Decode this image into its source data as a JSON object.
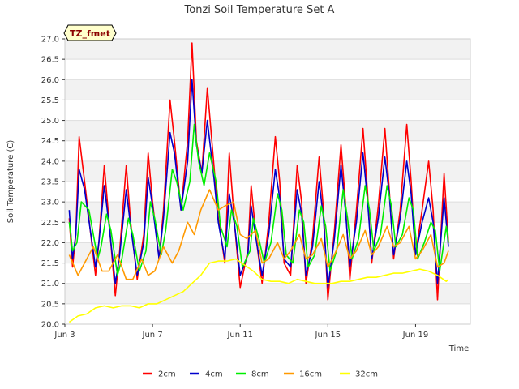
{
  "chart_data": {
    "type": "line",
    "title": "Tonzi Soil Temperature Set A",
    "xlabel": "Time",
    "ylabel": "Soil Temperature (C)",
    "tag": "TZ_fmet",
    "ylim": [
      20.0,
      27.0
    ],
    "xlim": [
      3.0,
      21.5
    ],
    "yticks": [
      20.0,
      20.5,
      21.0,
      21.5,
      22.0,
      22.5,
      23.0,
      23.5,
      24.0,
      24.5,
      25.0,
      25.5,
      26.0,
      26.5,
      27.0
    ],
    "ytick_labels": [
      "20.0",
      "20.5",
      "21.0",
      "21.5",
      "22.0",
      "22.5",
      "23.0",
      "23.5",
      "24.0",
      "24.5",
      "25.0",
      "25.5",
      "26.0",
      "26.5",
      "27.0"
    ],
    "xticks": [
      3,
      7,
      11,
      15,
      19
    ],
    "xtick_labels": [
      "Jun 3",
      "Jun 7",
      "Jun 11",
      "Jun 15",
      "Jun 19"
    ],
    "grid": true,
    "legend_position": "bottom",
    "series": [
      {
        "name": "2cm",
        "color": "#ff0000",
        "x": [
          3.2,
          3.35,
          3.5,
          3.65,
          3.9,
          4.4,
          4.55,
          4.8,
          5.0,
          5.3,
          5.5,
          5.8,
          6.0,
          6.3,
          6.6,
          6.8,
          7.0,
          7.3,
          7.5,
          7.8,
          8.0,
          8.3,
          8.6,
          8.8,
          9.0,
          9.25,
          9.5,
          9.8,
          10.0,
          10.3,
          10.5,
          10.75,
          11.0,
          11.35,
          11.5,
          11.75,
          12.0,
          12.3,
          12.6,
          12.8,
          13.0,
          13.3,
          13.6,
          13.8,
          14.0,
          14.3,
          14.6,
          14.8,
          15.0,
          15.3,
          15.6,
          15.8,
          16.0,
          16.3,
          16.6,
          16.8,
          17.0,
          17.3,
          17.6,
          17.8,
          18.0,
          18.3,
          18.6,
          18.8,
          19.0,
          19.3,
          19.6,
          19.8,
          20.0,
          20.3,
          20.5
        ],
        "y": [
          22.6,
          21.4,
          22.2,
          24.6,
          23.5,
          21.2,
          22.0,
          23.9,
          22.6,
          20.7,
          21.8,
          23.9,
          22.5,
          21.1,
          22.2,
          24.2,
          23.0,
          21.6,
          22.8,
          25.5,
          24.5,
          22.8,
          24.5,
          26.9,
          24.5,
          23.7,
          25.8,
          23.9,
          22.6,
          21.5,
          24.2,
          22.4,
          20.9,
          21.8,
          23.4,
          22.0,
          21.0,
          22.5,
          24.6,
          23.5,
          21.5,
          21.2,
          23.9,
          23.0,
          21.0,
          22.1,
          24.1,
          22.8,
          20.6,
          22.3,
          24.4,
          23.0,
          21.1,
          22.8,
          24.8,
          23.3,
          21.5,
          22.9,
          24.8,
          23.3,
          21.6,
          22.8,
          24.9,
          23.5,
          21.7,
          22.8,
          24.0,
          22.8,
          20.6,
          23.7,
          22.0
        ]
      },
      {
        "name": "4cm",
        "color": "#0000cc",
        "x": [
          3.2,
          3.35,
          3.5,
          3.65,
          3.9,
          4.4,
          4.55,
          4.8,
          5.0,
          5.3,
          5.5,
          5.8,
          6.0,
          6.3,
          6.6,
          6.8,
          7.0,
          7.3,
          7.5,
          7.8,
          8.0,
          8.3,
          8.6,
          8.8,
          9.0,
          9.25,
          9.5,
          9.8,
          10.0,
          10.3,
          10.5,
          10.75,
          11.0,
          11.35,
          11.5,
          11.75,
          12.0,
          12.3,
          12.6,
          12.8,
          13.0,
          13.3,
          13.6,
          13.8,
          14.0,
          14.3,
          14.6,
          14.8,
          15.0,
          15.3,
          15.6,
          15.8,
          16.0,
          16.3,
          16.6,
          16.8,
          17.0,
          17.3,
          17.6,
          17.8,
          18.0,
          18.3,
          18.6,
          18.8,
          19.0,
          19.3,
          19.6,
          19.8,
          20.0,
          20.3,
          20.5
        ],
        "y": [
          22.8,
          21.6,
          22.2,
          23.8,
          23.3,
          21.4,
          22.0,
          23.4,
          22.5,
          21.0,
          21.7,
          23.3,
          22.4,
          21.2,
          22.0,
          23.6,
          22.9,
          21.6,
          22.6,
          24.7,
          24.2,
          22.8,
          24.0,
          26.0,
          24.4,
          23.7,
          25.0,
          23.6,
          22.5,
          21.6,
          23.2,
          22.4,
          21.2,
          21.7,
          22.9,
          22.0,
          21.2,
          22.2,
          23.8,
          23.1,
          21.6,
          21.4,
          23.3,
          22.7,
          21.2,
          21.9,
          23.5,
          22.6,
          20.9,
          22.1,
          23.9,
          22.8,
          21.4,
          22.5,
          24.2,
          23.1,
          21.6,
          22.6,
          24.1,
          23.2,
          21.7,
          22.6,
          24.0,
          23.2,
          21.7,
          22.5,
          23.1,
          22.5,
          21.0,
          23.1,
          21.9
        ]
      },
      {
        "name": "8cm",
        "color": "#00ee00",
        "x": [
          3.2,
          3.35,
          3.55,
          3.75,
          4.1,
          4.5,
          4.65,
          4.9,
          5.1,
          5.4,
          5.6,
          5.9,
          6.1,
          6.4,
          6.7,
          6.9,
          7.1,
          7.4,
          7.6,
          7.9,
          8.1,
          8.4,
          8.7,
          8.9,
          9.1,
          9.35,
          9.6,
          9.9,
          10.1,
          10.4,
          10.6,
          10.85,
          11.1,
          11.45,
          11.6,
          11.85,
          12.1,
          12.4,
          12.7,
          12.9,
          13.1,
          13.4,
          13.7,
          13.9,
          14.1,
          14.4,
          14.7,
          14.9,
          15.1,
          15.4,
          15.7,
          15.9,
          16.1,
          16.4,
          16.7,
          16.9,
          17.1,
          17.4,
          17.7,
          17.9,
          18.1,
          18.4,
          18.7,
          18.9,
          19.1,
          19.4,
          19.7,
          19.9,
          20.1,
          20.4,
          20.5
        ],
        "y": [
          22.5,
          21.8,
          22.0,
          23.0,
          22.8,
          21.6,
          21.9,
          22.7,
          22.3,
          21.2,
          21.6,
          22.6,
          22.2,
          21.3,
          21.8,
          23.0,
          22.6,
          21.7,
          22.3,
          23.8,
          23.5,
          22.8,
          23.5,
          24.9,
          24.0,
          23.4,
          24.2,
          23.5,
          22.4,
          21.9,
          22.8,
          22.4,
          21.4,
          21.8,
          22.6,
          22.1,
          21.5,
          22.0,
          23.2,
          22.8,
          21.7,
          21.5,
          22.8,
          22.5,
          21.4,
          21.7,
          22.9,
          22.4,
          21.3,
          21.8,
          23.3,
          22.6,
          21.6,
          22.1,
          23.4,
          22.8,
          21.8,
          22.2,
          23.4,
          22.9,
          21.9,
          22.2,
          23.1,
          22.8,
          21.6,
          22.0,
          22.5,
          22.3,
          21.3,
          22.4,
          22.0
        ]
      },
      {
        "name": "16cm",
        "color": "#ff9900",
        "x": [
          3.2,
          3.6,
          4.0,
          4.3,
          4.7,
          5.0,
          5.4,
          5.8,
          6.1,
          6.5,
          6.8,
          7.1,
          7.5,
          7.9,
          8.2,
          8.6,
          8.9,
          9.2,
          9.6,
          10.0,
          10.3,
          10.7,
          11.0,
          11.3,
          11.7,
          12.0,
          12.3,
          12.7,
          13.0,
          13.3,
          13.7,
          14.0,
          14.3,
          14.7,
          15.0,
          15.3,
          15.7,
          16.0,
          16.3,
          16.7,
          17.0,
          17.3,
          17.7,
          18.0,
          18.3,
          18.7,
          19.0,
          19.3,
          19.7,
          20.0,
          20.3,
          20.5
        ],
        "y": [
          21.7,
          21.2,
          21.6,
          21.9,
          21.3,
          21.3,
          21.7,
          21.1,
          21.1,
          21.6,
          21.2,
          21.3,
          21.9,
          21.5,
          21.8,
          22.5,
          22.2,
          22.8,
          23.3,
          22.8,
          22.9,
          23.0,
          22.2,
          22.1,
          22.3,
          21.5,
          21.6,
          22.0,
          21.6,
          21.8,
          22.2,
          21.6,
          21.7,
          22.1,
          21.4,
          21.7,
          22.2,
          21.6,
          21.8,
          22.3,
          21.7,
          21.9,
          22.4,
          21.9,
          22.0,
          22.4,
          21.6,
          21.8,
          22.2,
          21.4,
          21.5,
          21.8
        ]
      },
      {
        "name": "32cm",
        "color": "#ffff00",
        "x": [
          3.2,
          3.6,
          4.0,
          4.4,
          4.8,
          5.2,
          5.6,
          6.0,
          6.4,
          6.8,
          7.2,
          7.6,
          8.0,
          8.4,
          8.8,
          9.2,
          9.6,
          10.0,
          10.4,
          10.8,
          11.2,
          11.6,
          12.0,
          12.4,
          12.8,
          13.2,
          13.6,
          14.0,
          14.4,
          14.8,
          15.2,
          15.6,
          16.0,
          16.4,
          16.8,
          17.2,
          17.6,
          18.0,
          18.4,
          18.8,
          19.2,
          19.6,
          20.0,
          20.4,
          20.5
        ],
        "y": [
          20.05,
          20.2,
          20.25,
          20.4,
          20.45,
          20.4,
          20.45,
          20.45,
          20.4,
          20.5,
          20.5,
          20.6,
          20.7,
          20.8,
          21.0,
          21.2,
          21.5,
          21.55,
          21.55,
          21.6,
          21.45,
          21.3,
          21.1,
          21.05,
          21.05,
          21.0,
          21.1,
          21.05,
          21.0,
          21.0,
          21.0,
          21.05,
          21.05,
          21.1,
          21.15,
          21.15,
          21.2,
          21.25,
          21.25,
          21.3,
          21.35,
          21.3,
          21.2,
          21.05,
          21.1
        ]
      }
    ]
  }
}
